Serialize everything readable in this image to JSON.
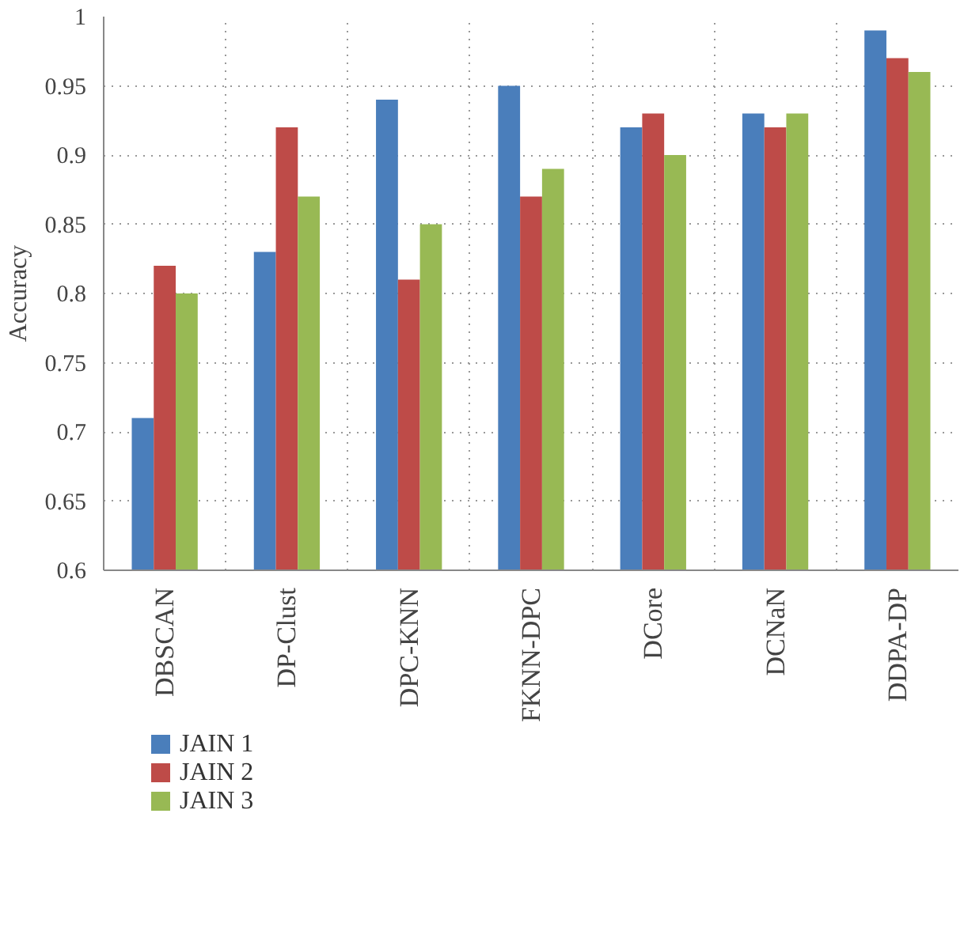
{
  "chart_data": {
    "type": "bar",
    "ylabel": "Accuracy",
    "categories": [
      "DBSCAN",
      "DP-Clust",
      "DPC-KNN",
      "FKNN-DPC",
      "DCore",
      "DCNaN",
      "DDPA-DP"
    ],
    "series": [
      {
        "name": "JAIN 1",
        "color": "#4a7ebb",
        "values": [
          0.71,
          0.83,
          0.94,
          0.95,
          0.92,
          0.93,
          0.99
        ]
      },
      {
        "name": "JAIN 2",
        "color": "#be4b48",
        "values": [
          0.82,
          0.92,
          0.81,
          0.87,
          0.93,
          0.92,
          0.97
        ]
      },
      {
        "name": "JAIN 3",
        "color": "#98b954",
        "values": [
          0.8,
          0.87,
          0.85,
          0.89,
          0.9,
          0.93,
          0.96
        ]
      }
    ],
    "ylim": [
      0.6,
      1
    ],
    "yticks": [
      0.6,
      0.65,
      0.7,
      0.75,
      0.8,
      0.85,
      0.9,
      0.95,
      1
    ],
    "grid": true,
    "legend": "bottom left"
  }
}
